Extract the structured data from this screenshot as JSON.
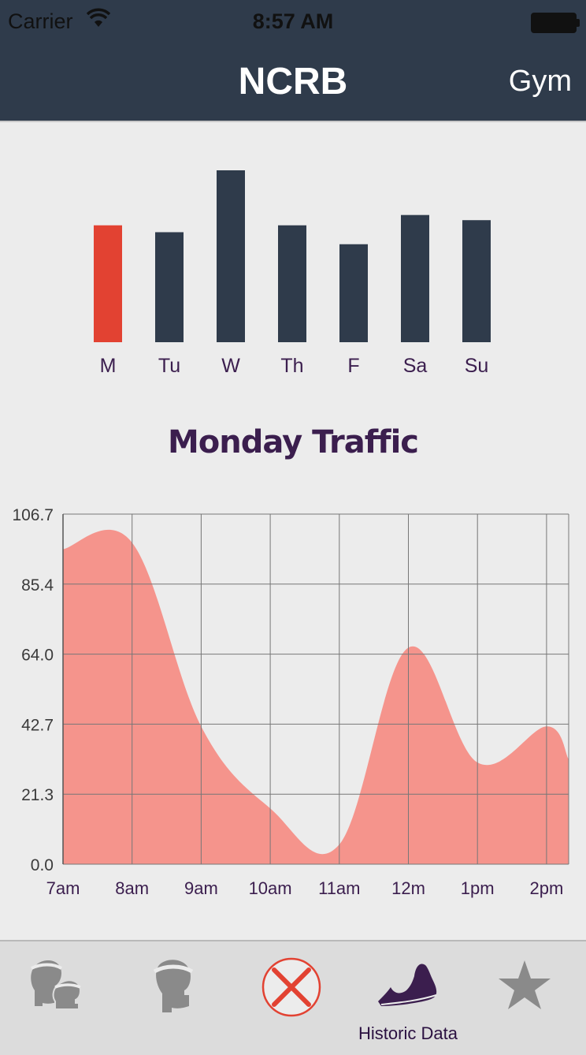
{
  "status": {
    "carrier": "Carrier",
    "time": "8:57 AM"
  },
  "nav": {
    "title": "NCRB",
    "right_button": "Gym"
  },
  "traffic_title": "Monday Traffic",
  "tabs": [
    {
      "icon": "two-people-icon",
      "label": ""
    },
    {
      "icon": "person-icon",
      "label": ""
    },
    {
      "icon": "cancel-x-icon",
      "label": ""
    },
    {
      "icon": "running-shoe-icon",
      "label": "Historic Data"
    },
    {
      "icon": "star-icon",
      "label": ""
    }
  ],
  "colors": {
    "nav": "#2f3b4b",
    "bar": "#2f3b4b",
    "bar_selected": "#e24232",
    "area": "#f5948c",
    "title": "#3b1e4e"
  },
  "chart_data": [
    {
      "type": "bar",
      "categories": [
        "M",
        "Tu",
        "W",
        "Th",
        "F",
        "Sa",
        "Su"
      ],
      "values": [
        68,
        64,
        100,
        68,
        57,
        74,
        71
      ],
      "selected_index": 0,
      "title": "",
      "xlabel": "",
      "ylabel": ""
    },
    {
      "type": "area",
      "title": "Monday Traffic",
      "categories": [
        "7am",
        "8am",
        "9am",
        "10am",
        "11am",
        "12m",
        "1pm",
        "2pm"
      ],
      "values": [
        96,
        98,
        42,
        17,
        6,
        66,
        31,
        42
      ],
      "trailing_value": 32,
      "y_ticks": [
        "0.0",
        "21.3",
        "42.7",
        "64.0",
        "85.4",
        "106.7"
      ],
      "ylim": [
        0,
        106.7
      ],
      "grid": true,
      "xlabel": "",
      "ylabel": ""
    }
  ]
}
